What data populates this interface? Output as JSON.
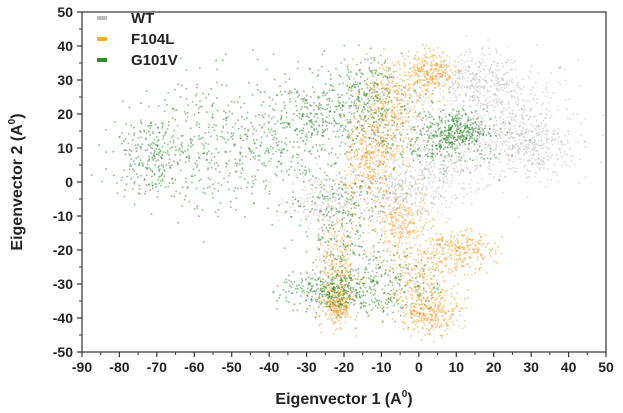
{
  "chart_data": {
    "type": "scatter",
    "xlabel_main": "Eigenvector 1 (A",
    "xlabel_sup": "0",
    "xlabel_end": ")",
    "ylabel_main": "Eigenvector 2 (A",
    "ylabel_sup": "0",
    "ylabel_end": ")",
    "xlim": [
      -90,
      50
    ],
    "ylim": [
      -50,
      50
    ],
    "xticks": [
      -90,
      -80,
      -70,
      -60,
      -50,
      -40,
      -30,
      -20,
      -10,
      0,
      10,
      20,
      30,
      40,
      50
    ],
    "yticks": [
      -50,
      -40,
      -30,
      -20,
      -10,
      0,
      10,
      20,
      30,
      40,
      50
    ],
    "xtick_labels": [
      "-90",
      "-80",
      "-70",
      "-60",
      "-50",
      "-40",
      "-30",
      "-20",
      "-10",
      "0",
      "10",
      "20",
      "30",
      "40",
      "50"
    ],
    "ytick_labels": [
      "-50",
      "-40",
      "-30",
      "-20",
      "-10",
      "0",
      "10",
      "20",
      "30",
      "40",
      "50"
    ],
    "grid": false,
    "legend_position": "top-left",
    "series": [
      {
        "name": "WT",
        "color": "#bdbdbd",
        "clusters": [
          {
            "x": 24,
            "y": 22,
            "sx": 9,
            "sy": 8
          },
          {
            "x": 15,
            "y": 30,
            "sx": 6,
            "sy": 4
          },
          {
            "x": 30,
            "y": 10,
            "sx": 6,
            "sy": 5
          },
          {
            "x": 5,
            "y": 5,
            "sx": 6,
            "sy": 6
          },
          {
            "x": -5,
            "y": -3,
            "sx": 5,
            "sy": 4
          },
          {
            "x": -25,
            "y": -5,
            "sx": 5,
            "sy": 4
          },
          {
            "x": 20,
            "y": 15,
            "sx": 8,
            "sy": 7
          }
        ]
      },
      {
        "name": "F104L",
        "color": "#f0a030",
        "clusters": [
          {
            "x": -7,
            "y": 27,
            "sx": 5,
            "sy": 5
          },
          {
            "x": -10,
            "y": 15,
            "sx": 4,
            "sy": 6
          },
          {
            "x": 3,
            "y": 33,
            "sx": 3,
            "sy": 3
          },
          {
            "x": -14,
            "y": 5,
            "sx": 3,
            "sy": 6
          },
          {
            "x": -22,
            "y": -25,
            "sx": 3,
            "sy": 7
          },
          {
            "x": -22,
            "y": -36,
            "sx": 2,
            "sy": 3
          },
          {
            "x": 0,
            "y": -30,
            "sx": 5,
            "sy": 6
          },
          {
            "x": 3,
            "y": -38,
            "sx": 4,
            "sy": 3
          },
          {
            "x": 10,
            "y": -20,
            "sx": 5,
            "sy": 3
          },
          {
            "x": -5,
            "y": -12,
            "sx": 4,
            "sy": 5
          }
        ]
      },
      {
        "name": "G101V",
        "color": "#2e8b2e",
        "clusters": [
          {
            "x": 5,
            "y": 13,
            "sx": 9,
            "sy": 5
          },
          {
            "x": -38,
            "y": 8,
            "sx": 10,
            "sy": 9
          },
          {
            "x": -55,
            "y": 12,
            "sx": 8,
            "sy": 10
          },
          {
            "x": -72,
            "y": 8,
            "sx": 5,
            "sy": 6
          },
          {
            "x": -28,
            "y": 20,
            "sx": 7,
            "sy": 6
          },
          {
            "x": -20,
            "y": -12,
            "sx": 6,
            "sy": 10
          },
          {
            "x": -15,
            "y": 25,
            "sx": 5,
            "sy": 6
          },
          {
            "x": -10,
            "y": -30,
            "sx": 8,
            "sy": 5
          },
          {
            "x": -25,
            "y": -32,
            "sx": 6,
            "sy": 3
          },
          {
            "x": 10,
            "y": 15,
            "sx": 4,
            "sy": 3
          }
        ]
      }
    ]
  }
}
